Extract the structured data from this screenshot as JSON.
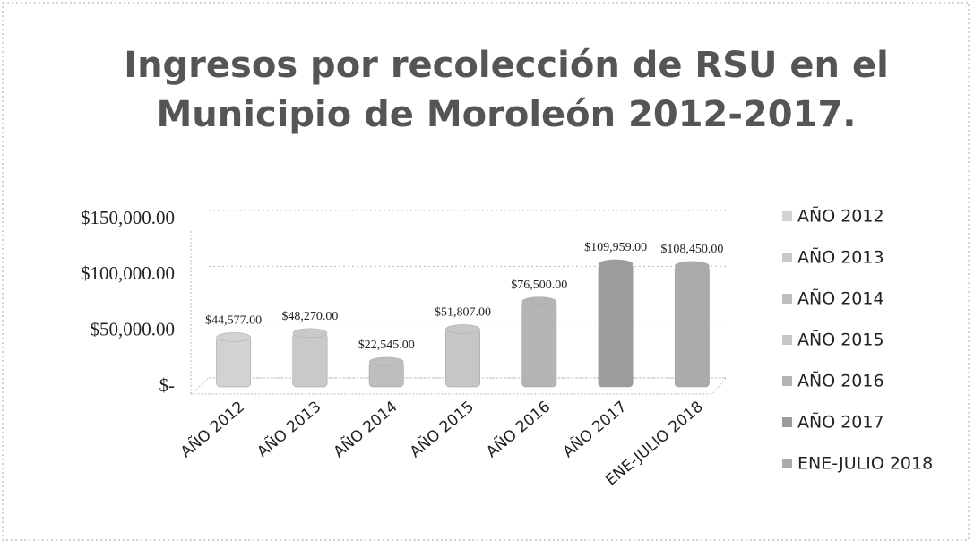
{
  "chart_data": {
    "type": "bar",
    "title": [
      "Ingresos por recolección de RSU en el",
      "Municipio de Moroleón 2012-2017."
    ],
    "categories": [
      "AÑO 2012",
      "AÑO 2013",
      "AÑO 2014",
      "AÑO 2015",
      "AÑO 2016",
      "AÑO 2017",
      "ENE-JULIO 2018"
    ],
    "values": [
      44577,
      48270,
      22545,
      51807,
      76500,
      109959,
      108450
    ],
    "value_labels": [
      "$44,577.00",
      "$48,270.00",
      "$22,545.00",
      "$51,807.00",
      "$76,500.00",
      "$109,959.00",
      "$108,450.00"
    ],
    "colors": [
      "#d2d2d2",
      "#c9c9c9",
      "#bebebe",
      "#c6c6c6",
      "#b4b4b4",
      "#9c9c9c",
      "#ababab"
    ],
    "ylim": [
      0,
      150000
    ],
    "yticks": [
      {
        "value": 0,
        "label": "$-"
      },
      {
        "value": 50000,
        "label": "$50,000.00"
      },
      {
        "value": 100000,
        "label": "$100,000.00"
      },
      {
        "value": 150000,
        "label": "$150,000.00"
      }
    ],
    "grid": true,
    "legend": "right"
  }
}
